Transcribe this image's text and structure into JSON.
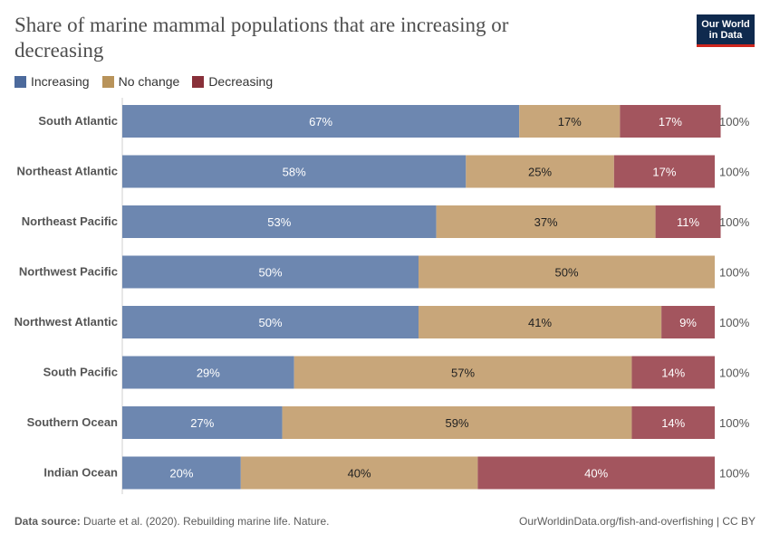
{
  "title": "Share of marine mammal populations that are increasing or decreasing",
  "logo": {
    "line1": "Our World",
    "line2": "in Data"
  },
  "colors": {
    "increasing": "#6d87b0",
    "no_change": "#c8a67a",
    "decreasing": "#a3555e",
    "legend_increasing": "#4c6a9c",
    "legend_no_change": "#b8935a",
    "legend_decreasing": "#883039"
  },
  "footer": {
    "source_label": "Data source:",
    "source_text": "Duarte et al. (2020). Rebuilding marine life. Nature.",
    "url": "OurWorldinData.org/fish-and-overfishing | CC BY"
  },
  "chart_data": {
    "type": "bar",
    "orientation": "horizontal",
    "stacked": true,
    "title": "Share of marine mammal populations that are increasing or decreasing",
    "categories": [
      "South Atlantic",
      "Northeast Atlantic",
      "Northeast Pacific",
      "Northwest Pacific",
      "Northwest Atlantic",
      "South Pacific",
      "Southern Ocean",
      "Indian Ocean"
    ],
    "series": [
      {
        "name": "Increasing",
        "values": [
          67,
          58,
          53,
          50,
          50,
          29,
          27,
          20
        ],
        "labels": [
          "67%",
          "58%",
          "53%",
          "50%",
          "50%",
          "29%",
          "27%",
          "20%"
        ]
      },
      {
        "name": "No change",
        "values": [
          17,
          25,
          37,
          50,
          41,
          57,
          59,
          40
        ],
        "labels": [
          "17%",
          "25%",
          "37%",
          "50%",
          "41%",
          "57%",
          "59%",
          "40%"
        ]
      },
      {
        "name": "Decreasing",
        "values": [
          17,
          17,
          11,
          0,
          9,
          14,
          14,
          40
        ],
        "labels": [
          "17%",
          "17%",
          "11%",
          "",
          "9%",
          "14%",
          "14%",
          "40%"
        ]
      }
    ],
    "totals": [
      "100%",
      "100%",
      "100%",
      "100%",
      "100%",
      "100%",
      "100%",
      "100%"
    ],
    "xlim": [
      0,
      100
    ],
    "legend_position": "top-left"
  }
}
